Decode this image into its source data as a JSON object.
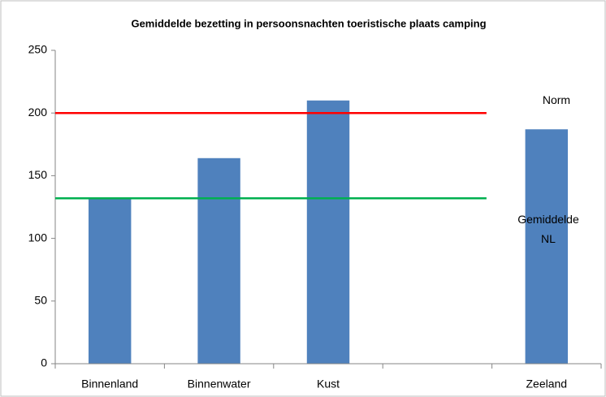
{
  "chart_data": {
    "type": "bar",
    "title": "Gemiddelde bezetting in persoonsnachten toeristische plaats camping",
    "categories": [
      "Binnenland",
      "Binnenwater",
      "Kust",
      null,
      "Zeeland"
    ],
    "values": [
      132,
      164,
      210,
      null,
      187
    ],
    "color": "#4f81bd",
    "ylim": [
      0,
      250
    ],
    "yticks": [
      0,
      50,
      100,
      150,
      200,
      250
    ],
    "grid": false,
    "reference_lines": [
      {
        "label": "Norm",
        "value": 200,
        "color": "#ff0000"
      },
      {
        "label": "Gemiddelde NL",
        "value": 132,
        "color": "#00b050"
      }
    ]
  }
}
